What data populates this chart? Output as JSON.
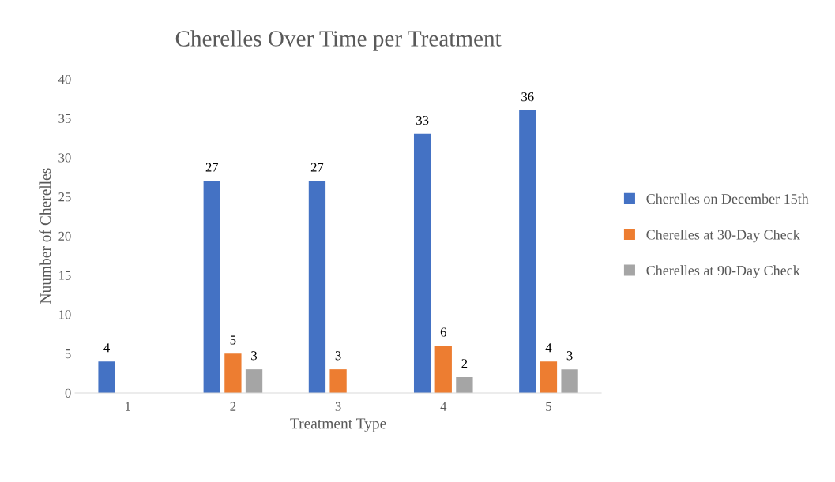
{
  "chart_data": {
    "type": "bar",
    "title": "Cherelles Over Time per Treatment",
    "xlabel": "Treatment Type",
    "ylabel": "Nuumber of Cherelles",
    "categories": [
      "1",
      "2",
      "3",
      "4",
      "5"
    ],
    "series": [
      {
        "name": "Cherelles on December 15th",
        "color": "#4472c4",
        "values": [
          4,
          27,
          27,
          33,
          36
        ]
      },
      {
        "name": "Cherelles at 30-Day Check",
        "color": "#ed7d31",
        "values": [
          null,
          5,
          3,
          6,
          4
        ]
      },
      {
        "name": "Cherelles at 90-Day Check",
        "color": "#a5a5a5",
        "values": [
          null,
          3,
          null,
          2,
          3
        ]
      }
    ],
    "ylim": [
      0,
      40
    ],
    "yticks": [
      0,
      5,
      10,
      15,
      20,
      25,
      30,
      35,
      40
    ],
    "grid": false,
    "legend": "right",
    "data_labels": true
  }
}
